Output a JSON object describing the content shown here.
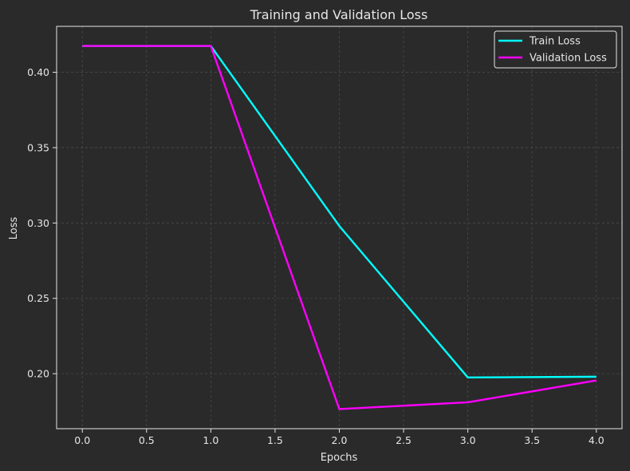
{
  "chart_data": {
    "type": "line",
    "title": "Training and Validation Loss",
    "xlabel": "Epochs",
    "ylabel": "Loss",
    "x": [
      0,
      1,
      2,
      3,
      4
    ],
    "series": [
      {
        "name": "Train Loss",
        "values": [
          0.4175,
          0.4175,
          0.298,
          0.1975,
          0.198
        ],
        "color": "#00ffff"
      },
      {
        "name": "Validation Loss",
        "values": [
          0.4175,
          0.4175,
          0.1765,
          0.181,
          0.1955
        ],
        "color": "#ff00ff"
      }
    ],
    "xlim": [
      -0.2,
      4.2
    ],
    "ylim": [
      0.1635,
      0.4305
    ],
    "xticks": [
      "0.0",
      "0.5",
      "1.0",
      "1.5",
      "2.0",
      "2.5",
      "3.0",
      "3.5",
      "4.0"
    ],
    "yticks": [
      "0.20",
      "0.25",
      "0.30",
      "0.35",
      "0.40"
    ],
    "grid": true,
    "legend_position": "top-right",
    "colors": {
      "background": "#2a2a2a",
      "axes": "#2a2a2a",
      "text": "#e6e6e6",
      "grid": "#4a4a4a"
    }
  }
}
